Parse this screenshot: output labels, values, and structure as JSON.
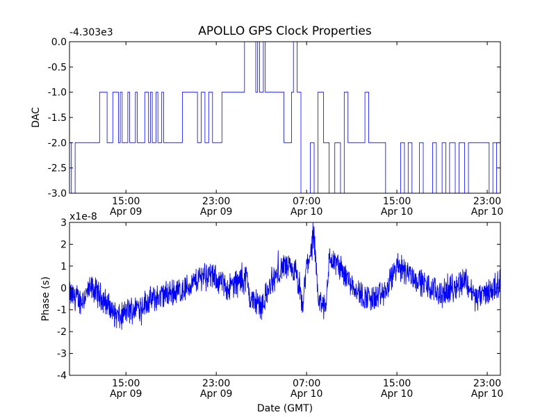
{
  "window": {
    "title": "APOLLO GPS Clock Properties"
  },
  "colors": {
    "series": "#0000ff",
    "axes": "#000000",
    "background": "#ffffff"
  },
  "chart_data": [
    {
      "type": "line",
      "title": "APOLLO GPS Clock Properties",
      "ylabel": "DAC",
      "xlabel": "",
      "offset_label": "-4.303e3",
      "ylim": [
        -3.0,
        0.0
      ],
      "xlim": [
        "2009-04-09 10:00",
        "2009-04-11 00:10"
      ],
      "yticks": [
        {
          "value": 0.0,
          "label": "0.0"
        },
        {
          "value": -0.5,
          "label": "-0.5"
        },
        {
          "value": -1.0,
          "label": "-1.0"
        },
        {
          "value": -1.5,
          "label": "-1.5"
        },
        {
          "value": -2.0,
          "label": "-2.0"
        },
        {
          "value": -2.5,
          "label": "-2.5"
        },
        {
          "value": -3.0,
          "label": "-3.0"
        }
      ],
      "xticks": [
        {
          "time": "2009-04-09 15:00",
          "label_time": "15:00",
          "label_date": "Apr 09"
        },
        {
          "time": "2009-04-09 23:00",
          "label_time": "23:00",
          "label_date": "Apr 09"
        },
        {
          "time": "2009-04-10 07:00",
          "label_time": "07:00",
          "label_date": "Apr 10"
        },
        {
          "time": "2009-04-10 15:00",
          "label_time": "15:00",
          "label_date": "Apr 10"
        },
        {
          "time": "2009-04-10 23:00",
          "label_time": "23:00",
          "label_date": "Apr 10"
        }
      ],
      "grid": false,
      "series": [
        {
          "x": [
            "2009-04-09 10:00",
            "2009-04-09 10:10",
            "2009-04-09 10:10",
            "2009-04-09 10:30",
            "2009-04-09 10:30",
            "2009-04-09 12:40",
            "2009-04-09 12:40",
            "2009-04-09 13:20",
            "2009-04-09 13:20",
            "2009-04-09 13:50",
            "2009-04-09 13:50",
            "2009-04-09 14:20",
            "2009-04-09 14:20",
            "2009-04-09 14:30",
            "2009-04-09 14:30",
            "2009-04-09 14:40",
            "2009-04-09 14:40",
            "2009-04-09 15:10",
            "2009-04-09 15:10",
            "2009-04-09 15:20",
            "2009-04-09 15:20",
            "2009-04-09 15:50",
            "2009-04-09 15:50",
            "2009-04-09 16:00",
            "2009-04-09 16:00",
            "2009-04-09 16:40",
            "2009-04-09 16:40",
            "2009-04-09 17:00",
            "2009-04-09 17:00",
            "2009-04-09 17:10",
            "2009-04-09 17:10",
            "2009-04-09 17:20",
            "2009-04-09 17:20",
            "2009-04-09 17:40",
            "2009-04-09 17:40",
            "2009-04-09 17:50",
            "2009-04-09 17:50",
            "2009-04-09 18:10",
            "2009-04-09 18:10",
            "2009-04-09 18:20",
            "2009-04-09 18:20",
            "2009-04-09 20:00",
            "2009-04-09 20:00",
            "2009-04-09 21:20",
            "2009-04-09 21:20",
            "2009-04-09 21:40",
            "2009-04-09 21:40",
            "2009-04-09 22:00",
            "2009-04-09 22:00",
            "2009-04-09 22:20",
            "2009-04-09 22:20",
            "2009-04-09 22:40",
            "2009-04-09 22:40",
            "2009-04-09 23:30",
            "2009-04-09 23:30",
            "2009-04-10 01:30",
            "2009-04-10 01:30",
            "2009-04-10 02:30",
            "2009-04-10 02:30",
            "2009-04-10 02:40",
            "2009-04-10 02:40",
            "2009-04-10 02:50",
            "2009-04-10 02:50",
            "2009-04-10 03:10",
            "2009-04-10 03:10",
            "2009-04-10 03:20",
            "2009-04-10 03:20",
            "2009-04-10 03:50",
            "2009-04-10 03:50",
            "2009-04-10 05:00",
            "2009-04-10 05:00",
            "2009-04-10 05:40",
            "2009-04-10 05:40",
            "2009-04-10 05:50",
            "2009-04-10 05:50",
            "2009-04-10 06:10",
            "2009-04-10 06:10",
            "2009-04-10 06:20",
            "2009-04-10 06:20",
            "2009-04-10 06:30",
            "2009-04-10 06:30",
            "2009-04-10 07:20",
            "2009-04-10 07:20",
            "2009-04-10 07:40",
            "2009-04-10 07:40",
            "2009-04-10 08:00",
            "2009-04-10 08:00",
            "2009-04-10 08:30",
            "2009-04-10 08:30",
            "2009-04-10 09:00",
            "2009-04-10 09:00",
            "2009-04-10 09:30",
            "2009-04-10 09:30",
            "2009-04-10 10:00",
            "2009-04-10 10:00",
            "2009-04-10 10:20",
            "2009-04-10 10:20",
            "2009-04-10 10:40",
            "2009-04-10 10:40",
            "2009-04-10 12:10",
            "2009-04-10 12:10",
            "2009-04-10 12:30",
            "2009-04-10 12:30",
            "2009-04-10 14:00",
            "2009-04-10 14:00",
            "2009-04-10 15:20",
            "2009-04-10 15:20",
            "2009-04-10 15:40",
            "2009-04-10 15:40",
            "2009-04-10 16:00",
            "2009-04-10 16:00",
            "2009-04-10 16:20",
            "2009-04-10 16:20",
            "2009-04-10 17:00",
            "2009-04-10 17:00",
            "2009-04-10 17:20",
            "2009-04-10 17:20",
            "2009-04-10 18:10",
            "2009-04-10 18:10",
            "2009-04-10 18:30",
            "2009-04-10 18:30",
            "2009-04-10 19:00",
            "2009-04-10 19:00",
            "2009-04-10 19:20",
            "2009-04-10 19:20",
            "2009-04-10 19:40",
            "2009-04-10 19:40",
            "2009-04-10 20:10",
            "2009-04-10 20:10",
            "2009-04-10 20:30",
            "2009-04-10 20:30",
            "2009-04-10 21:00",
            "2009-04-10 21:00",
            "2009-04-10 21:20",
            "2009-04-10 21:20",
            "2009-04-10 23:10",
            "2009-04-10 23:10",
            "2009-04-10 23:30",
            "2009-04-10 23:30",
            "2009-04-10 23:50",
            "2009-04-10 23:50",
            "2009-04-11 00:10"
          ],
          "values": [
            -2.0,
            -2.0,
            -3.0,
            -3.0,
            -2.0,
            -2.0,
            -1.0,
            -1.0,
            -2.0,
            -2.0,
            -1.0,
            -1.0,
            -2.0,
            -2.0,
            -1.0,
            -1.0,
            -2.0,
            -2.0,
            -1.0,
            -1.0,
            -2.0,
            -2.0,
            -1.0,
            -1.0,
            -2.0,
            -2.0,
            -1.0,
            -1.0,
            -2.0,
            -2.0,
            -1.0,
            -1.0,
            -2.0,
            -2.0,
            -1.0,
            -1.0,
            -2.0,
            -2.0,
            -1.0,
            -1.0,
            -2.0,
            -2.0,
            -1.0,
            -1.0,
            -2.0,
            -2.0,
            -1.0,
            -1.0,
            -2.0,
            -2.0,
            -1.0,
            -1.0,
            -2.0,
            -2.0,
            -1.0,
            -1.0,
            0.0,
            0.0,
            -1.0,
            -1.0,
            0.0,
            0.0,
            -1.0,
            -1.0,
            0.0,
            0.0,
            -1.0,
            -1.0,
            -1.0,
            -1.0,
            -2.0,
            -2.0,
            -1.0,
            -1.0,
            0.0,
            0.0,
            -1.0,
            -1.0,
            -1.0,
            -1.0,
            -3.0,
            -3.0,
            -2.0,
            -2.0,
            -3.0,
            -3.0,
            -1.0,
            -1.0,
            -2.0,
            -2.0,
            -3.0,
            -3.0,
            -2.0,
            -2.0,
            -3.0,
            -3.0,
            -1.0,
            -1.0,
            -2.0,
            -2.0,
            -1.0,
            -1.0,
            -2.0,
            -2.0,
            -3.0,
            -3.0,
            -2.0,
            -2.0,
            -3.0,
            -3.0,
            -2.0,
            -2.0,
            -3.0,
            -3.0,
            -2.0,
            -2.0,
            -3.0,
            -3.0,
            -2.0,
            -2.0,
            -3.0,
            -3.0,
            -2.0,
            -2.0,
            -3.0,
            -3.0,
            -2.0,
            -2.0,
            -3.0,
            -3.0,
            -2.0,
            -2.0,
            -3.0,
            -3.0,
            -2.0,
            -2.0,
            -3.0,
            -3.0,
            -2.0,
            -2.0,
            -3.0,
            -3.0
          ]
        }
      ]
    },
    {
      "type": "line",
      "title": "",
      "ylabel": "Phase (s)",
      "xlabel": "Date (GMT)",
      "offset_label": "x1e-8",
      "ylim": [
        -4,
        3
      ],
      "xlim": [
        "2009-04-09 10:00",
        "2009-04-11 00:10"
      ],
      "yticks": [
        {
          "value": 3,
          "label": "3"
        },
        {
          "value": 2,
          "label": "2"
        },
        {
          "value": 1,
          "label": "1"
        },
        {
          "value": 0,
          "label": "0"
        },
        {
          "value": -1,
          "label": "-1"
        },
        {
          "value": -2,
          "label": "-2"
        },
        {
          "value": -3,
          "label": "-3"
        },
        {
          "value": -4,
          "label": "-4"
        }
      ],
      "xticks": [
        {
          "time": "2009-04-09 15:00",
          "label_time": "15:00",
          "label_date": "Apr 09"
        },
        {
          "time": "2009-04-09 23:00",
          "label_time": "23:00",
          "label_date": "Apr 09"
        },
        {
          "time": "2009-04-10 07:00",
          "label_time": "07:00",
          "label_date": "Apr 10"
        },
        {
          "time": "2009-04-10 15:00",
          "label_time": "15:00",
          "label_date": "Apr 10"
        },
        {
          "time": "2009-04-10 23:00",
          "label_time": "23:00",
          "label_date": "Apr 10"
        }
      ],
      "grid": false,
      "series": [
        {
          "x": [
            "2009-04-09 10:00",
            "2009-04-09 11:00",
            "2009-04-09 12:00",
            "2009-04-09 13:00",
            "2009-04-09 14:00",
            "2009-04-09 14:30",
            "2009-04-09 15:00",
            "2009-04-09 16:00",
            "2009-04-09 17:00",
            "2009-04-09 18:00",
            "2009-04-09 19:00",
            "2009-04-09 20:00",
            "2009-04-09 21:00",
            "2009-04-09 22:00",
            "2009-04-09 23:00",
            "2009-04-10 00:00",
            "2009-04-10 01:00",
            "2009-04-10 01:40",
            "2009-04-10 02:00",
            "2009-04-10 03:00",
            "2009-04-10 04:00",
            "2009-04-10 05:00",
            "2009-04-10 06:00",
            "2009-04-10 06:40",
            "2009-04-10 07:00",
            "2009-04-10 07:40",
            "2009-04-10 08:00",
            "2009-04-10 08:40",
            "2009-04-10 09:00",
            "2009-04-10 09:40",
            "2009-04-10 10:00",
            "2009-04-10 11:00",
            "2009-04-10 12:00",
            "2009-04-10 13:00",
            "2009-04-10 14:00",
            "2009-04-10 15:00",
            "2009-04-10 16:00",
            "2009-04-10 17:00",
            "2009-04-10 18:00",
            "2009-04-10 19:00",
            "2009-04-10 20:00",
            "2009-04-10 21:00",
            "2009-04-10 22:00",
            "2009-04-10 23:00",
            "2009-04-11 00:10"
          ],
          "values": [
            -0.3,
            -0.6,
            0.0,
            -0.5,
            -1.2,
            -1.4,
            -1.1,
            -0.9,
            -0.6,
            -0.4,
            -0.2,
            -0.1,
            0.2,
            0.7,
            0.4,
            0.0,
            0.3,
            0.5,
            -0.5,
            -0.8,
            0.3,
            1.0,
            0.7,
            -0.9,
            1.0,
            2.2,
            -0.5,
            -1.0,
            1.3,
            1.1,
            0.9,
            0.2,
            -0.4,
            -0.5,
            -0.2,
            1.0,
            0.7,
            0.3,
            0.0,
            -0.3,
            0.0,
            0.4,
            -0.5,
            -0.2,
            0.2
          ]
        }
      ]
    }
  ]
}
